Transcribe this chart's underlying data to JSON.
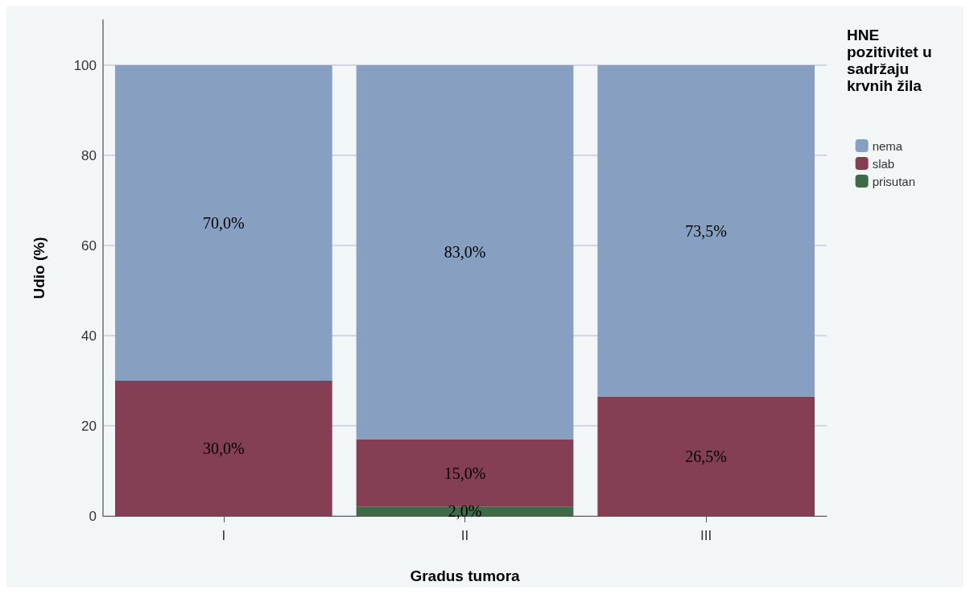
{
  "chart_data": {
    "type": "bar",
    "stacked": true,
    "xlabel": "Gradus tumora",
    "ylabel": "Udio (%)",
    "legend_title": "HNE pozitivitet u sadržaju krvnih žila",
    "legend": "top right",
    "grid": "y",
    "categories": [
      "I",
      "II",
      "III"
    ],
    "ylim": [
      0,
      110
    ],
    "yticks": [
      0,
      20,
      40,
      60,
      80,
      100
    ],
    "series": [
      {
        "name": "prisutan",
        "color": "#3f6a48",
        "values": [
          0,
          2,
          0
        ],
        "value_labels": [
          null,
          "2,0%",
          null
        ]
      },
      {
        "name": "slab",
        "color": "#843f55",
        "values": [
          30,
          15,
          26.5
        ],
        "value_labels": [
          "30,0%",
          "15,0%",
          "26,5%"
        ]
      },
      {
        "name": "nema",
        "color": "#879fc0",
        "values": [
          70,
          83,
          73.5
        ],
        "value_labels": [
          "70,0%",
          "83,0%",
          "73,5%"
        ]
      }
    ]
  }
}
